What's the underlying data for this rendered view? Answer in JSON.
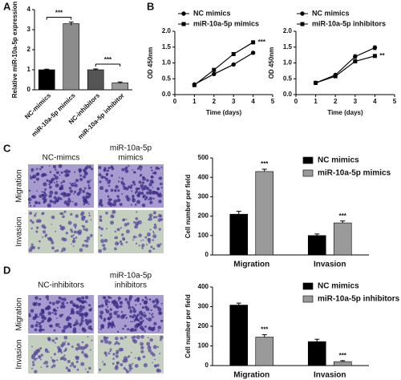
{
  "panel_labels": [
    "A",
    "B",
    "C",
    "D"
  ],
  "micrographs": [
    {
      "columns": [
        [
          "NC-mimcs"
        ],
        [
          "miR-10a-5p",
          "mimics"
        ]
      ],
      "rows": [
        "Migration",
        "Invasion"
      ]
    },
    {
      "columns": [
        [
          "NC-inhibitors"
        ],
        [
          "miR-10a-5p",
          "inhibitors"
        ]
      ],
      "rows": [
        "Migration",
        "Invasion"
      ]
    }
  ],
  "chart_data": [
    {
      "type": "bar",
      "ylabel": "Relative miR-10a-5p expression",
      "categories": [
        "NC-mimics",
        "miR-10a-5p mimics",
        "NC-inhibitors",
        "miR-10a-5p inhibitor"
      ],
      "values": [
        1.0,
        3.3,
        1.0,
        0.35
      ],
      "errors": [
        0.03,
        0.08,
        0.04,
        0.04
      ],
      "colors": [
        "#000000",
        "#8c8c8c",
        "#555555",
        "#9a9a9a"
      ],
      "annotations": [
        "***",
        "***"
      ],
      "ylim": [
        0,
        4
      ],
      "yticks": [
        0,
        1,
        2,
        3,
        4
      ]
    },
    {
      "type": "line",
      "xlabel": "Time (days)",
      "ylabel": "OD 450nm",
      "x": [
        1,
        2,
        3,
        4
      ],
      "series": [
        {
          "name": "NC mimics",
          "color": "#000000",
          "marker": "circle",
          "values": [
            0.32,
            0.65,
            0.95,
            1.32
          ],
          "errors": [
            0.02,
            0.02,
            0.02,
            0.03
          ]
        },
        {
          "name": "miR-10a-5p mimics",
          "color": "#000000",
          "marker": "square",
          "values": [
            0.3,
            0.78,
            1.28,
            1.65
          ],
          "errors": [
            0.02,
            0.02,
            0.02,
            0.03
          ],
          "annotation": "***"
        }
      ],
      "xlim": [
        0,
        5
      ],
      "xticks": [
        0,
        1,
        2,
        3,
        4,
        5
      ],
      "ylim": [
        0,
        2
      ],
      "yticks": [
        {
          "value": 0,
          "label": "0.0"
        },
        0.5,
        {
          "value": 1,
          "label": "1.0"
        },
        1.5,
        {
          "value": 2,
          "label": "2.0"
        }
      ]
    },
    {
      "type": "line",
      "xlabel": "Time (days)",
      "ylabel": "OD 450nm",
      "x": [
        1,
        2,
        3,
        4
      ],
      "series": [
        {
          "name": "NC mimics",
          "color": "#000000",
          "marker": "circle",
          "values": [
            0.37,
            0.62,
            1.2,
            1.48
          ],
          "errors": [
            0.02,
            0.03,
            0.06,
            0.06
          ]
        },
        {
          "name": "miR-10a-5p inhibitors",
          "color": "#000000",
          "marker": "square",
          "values": [
            0.37,
            0.58,
            1.05,
            1.22
          ],
          "errors": [
            0.02,
            0.02,
            0.04,
            0.03
          ],
          "annotation": "**"
        }
      ],
      "xlim": [
        0,
        5
      ],
      "xticks": [
        0,
        1,
        2,
        3,
        4,
        5
      ],
      "ylim": [
        0,
        2
      ],
      "yticks": [
        {
          "value": 0,
          "label": "0.0"
        },
        0.5,
        {
          "value": 1,
          "label": "1.0"
        },
        1.5,
        {
          "value": 2,
          "label": "2.0"
        }
      ]
    },
    {
      "type": "bar",
      "ylabel": "Cell number per field",
      "categories": [
        "Migration",
        "Invasion"
      ],
      "series": [
        {
          "name": "NC mimics",
          "color": "#000000",
          "values": [
            210,
            100
          ],
          "errors": [
            15,
            8
          ]
        },
        {
          "name": "miR-10a-5p mimics",
          "color": "#9a9a9a",
          "values": [
            430,
            165
          ],
          "errors": [
            12,
            10
          ],
          "annotations": [
            "***",
            "***"
          ]
        }
      ],
      "ylim": [
        0,
        500
      ],
      "yticks": [
        0,
        100,
        200,
        300,
        400,
        500
      ]
    },
    {
      "type": "bar",
      "ylabel": "Cell number per field",
      "categories": [
        "Migration",
        "Invasion"
      ],
      "series": [
        {
          "name": "NC mimics",
          "color": "#000000",
          "values": [
            308,
            122
          ],
          "errors": [
            10,
            12
          ]
        },
        {
          "name": "miR-10a-5p inhibitors",
          "color": "#9a9a9a",
          "values": [
            145,
            20
          ],
          "errors": [
            12,
            5
          ],
          "annotations": [
            "***",
            "***"
          ]
        }
      ],
      "ylim": [
        0,
        400
      ],
      "yticks": [
        0,
        100,
        200,
        300,
        400
      ]
    }
  ]
}
